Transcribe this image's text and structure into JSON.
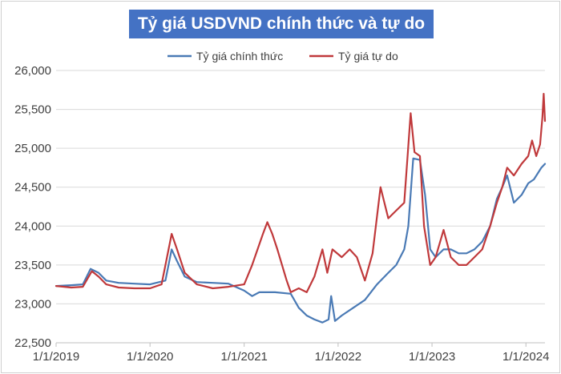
{
  "chart_data": {
    "type": "line",
    "title": "Tỷ giá USDVND chính thức và tự do",
    "xlabel": "",
    "ylabel": "",
    "x_ticks": [
      "1/1/2019",
      "1/1/2020",
      "1/1/2021",
      "1/1/2022",
      "1/1/2023",
      "1/1/2024"
    ],
    "y_ticks": [
      "22,500",
      "23,000",
      "23,500",
      "24,000",
      "24,500",
      "25,000",
      "25,500",
      "26,000"
    ],
    "ylim": [
      22500,
      26000
    ],
    "xlim": [
      "2019-01-01",
      "2024-03-15"
    ],
    "grid": "horizontal",
    "legend_position": "top",
    "series": [
      {
        "name": "Tỷ giá chính thức",
        "color": "#4a7ab5",
        "points": [
          [
            "2019-01-01",
            23230
          ],
          [
            "2019-03-01",
            23240
          ],
          [
            "2019-04-15",
            23250
          ],
          [
            "2019-05-15",
            23450
          ],
          [
            "2019-06-15",
            23400
          ],
          [
            "2019-07-15",
            23300
          ],
          [
            "2019-09-01",
            23270
          ],
          [
            "2019-11-01",
            23260
          ],
          [
            "2020-01-01",
            23250
          ],
          [
            "2020-03-01",
            23300
          ],
          [
            "2020-03-25",
            23700
          ],
          [
            "2020-04-15",
            23550
          ],
          [
            "2020-05-15",
            23350
          ],
          [
            "2020-07-01",
            23280
          ],
          [
            "2020-09-01",
            23270
          ],
          [
            "2020-11-01",
            23260
          ],
          [
            "2021-01-01",
            23170
          ],
          [
            "2021-02-01",
            23100
          ],
          [
            "2021-03-01",
            23150
          ],
          [
            "2021-05-01",
            23150
          ],
          [
            "2021-07-01",
            23130
          ],
          [
            "2021-08-01",
            22950
          ],
          [
            "2021-09-01",
            22850
          ],
          [
            "2021-10-01",
            22800
          ],
          [
            "2021-11-01",
            22760
          ],
          [
            "2021-11-25",
            22800
          ],
          [
            "2021-12-05",
            23100
          ],
          [
            "2021-12-20",
            22780
          ],
          [
            "2022-01-15",
            22850
          ],
          [
            "2022-03-01",
            22950
          ],
          [
            "2022-04-15",
            23050
          ],
          [
            "2022-06-01",
            23250
          ],
          [
            "2022-07-15",
            23400
          ],
          [
            "2022-08-15",
            23500
          ],
          [
            "2022-09-15",
            23700
          ],
          [
            "2022-10-01",
            24000
          ],
          [
            "2022-10-20",
            24870
          ],
          [
            "2022-11-15",
            24850
          ],
          [
            "2022-12-05",
            24400
          ],
          [
            "2022-12-25",
            23700
          ],
          [
            "2023-01-15",
            23600
          ],
          [
            "2023-02-15",
            23700
          ],
          [
            "2023-03-15",
            23700
          ],
          [
            "2023-04-15",
            23650
          ],
          [
            "2023-05-15",
            23650
          ],
          [
            "2023-06-15",
            23700
          ],
          [
            "2023-07-15",
            23800
          ],
          [
            "2023-08-15",
            24000
          ],
          [
            "2023-09-10",
            24350
          ],
          [
            "2023-10-01",
            24500
          ],
          [
            "2023-10-20",
            24650
          ],
          [
            "2023-11-15",
            24300
          ],
          [
            "2023-12-15",
            24400
          ],
          [
            "2024-01-10",
            24550
          ],
          [
            "2024-02-01",
            24600
          ],
          [
            "2024-03-01",
            24750
          ],
          [
            "2024-03-15",
            24800
          ]
        ]
      },
      {
        "name": "Tỷ giá tự do",
        "color": "#c0393b",
        "points": [
          [
            "2019-01-01",
            23230
          ],
          [
            "2019-03-01",
            23210
          ],
          [
            "2019-04-15",
            23220
          ],
          [
            "2019-05-20",
            23420
          ],
          [
            "2019-06-15",
            23350
          ],
          [
            "2019-07-15",
            23250
          ],
          [
            "2019-09-01",
            23210
          ],
          [
            "2019-11-01",
            23200
          ],
          [
            "2020-01-01",
            23200
          ],
          [
            "2020-02-15",
            23250
          ],
          [
            "2020-03-25",
            23900
          ],
          [
            "2020-04-15",
            23700
          ],
          [
            "2020-05-15",
            23400
          ],
          [
            "2020-07-01",
            23250
          ],
          [
            "2020-09-01",
            23200
          ],
          [
            "2020-11-01",
            23220
          ],
          [
            "2021-01-01",
            23250
          ],
          [
            "2021-02-01",
            23500
          ],
          [
            "2021-03-15",
            23900
          ],
          [
            "2021-04-01",
            24050
          ],
          [
            "2021-04-20",
            23900
          ],
          [
            "2021-05-10",
            23700
          ],
          [
            "2021-06-15",
            23300
          ],
          [
            "2021-07-01",
            23150
          ],
          [
            "2021-08-01",
            23200
          ],
          [
            "2021-09-01",
            23150
          ],
          [
            "2021-10-01",
            23350
          ],
          [
            "2021-11-01",
            23700
          ],
          [
            "2021-11-20",
            23400
          ],
          [
            "2021-12-10",
            23700
          ],
          [
            "2022-01-15",
            23600
          ],
          [
            "2022-02-15",
            23700
          ],
          [
            "2022-03-15",
            23600
          ],
          [
            "2022-04-15",
            23300
          ],
          [
            "2022-05-15",
            23650
          ],
          [
            "2022-06-15",
            24500
          ],
          [
            "2022-07-15",
            24100
          ],
          [
            "2022-08-15",
            24200
          ],
          [
            "2022-09-15",
            24300
          ],
          [
            "2022-10-10",
            25450
          ],
          [
            "2022-10-25",
            24950
          ],
          [
            "2022-11-15",
            24900
          ],
          [
            "2022-12-01",
            24000
          ],
          [
            "2022-12-25",
            23500
          ],
          [
            "2023-01-15",
            23600
          ],
          [
            "2023-02-15",
            23950
          ],
          [
            "2023-03-15",
            23600
          ],
          [
            "2023-04-15",
            23500
          ],
          [
            "2023-05-15",
            23500
          ],
          [
            "2023-06-15",
            23600
          ],
          [
            "2023-07-15",
            23700
          ],
          [
            "2023-08-15",
            24000
          ],
          [
            "2023-09-10",
            24300
          ],
          [
            "2023-10-01",
            24500
          ],
          [
            "2023-10-20",
            24750
          ],
          [
            "2023-11-15",
            24650
          ],
          [
            "2023-12-15",
            24800
          ],
          [
            "2024-01-10",
            24900
          ],
          [
            "2024-01-25",
            25100
          ],
          [
            "2024-02-10",
            24900
          ],
          [
            "2024-02-25",
            25050
          ],
          [
            "2024-03-05",
            25400
          ],
          [
            "2024-03-10",
            25700
          ],
          [
            "2024-03-15",
            25350
          ]
        ]
      }
    ]
  }
}
